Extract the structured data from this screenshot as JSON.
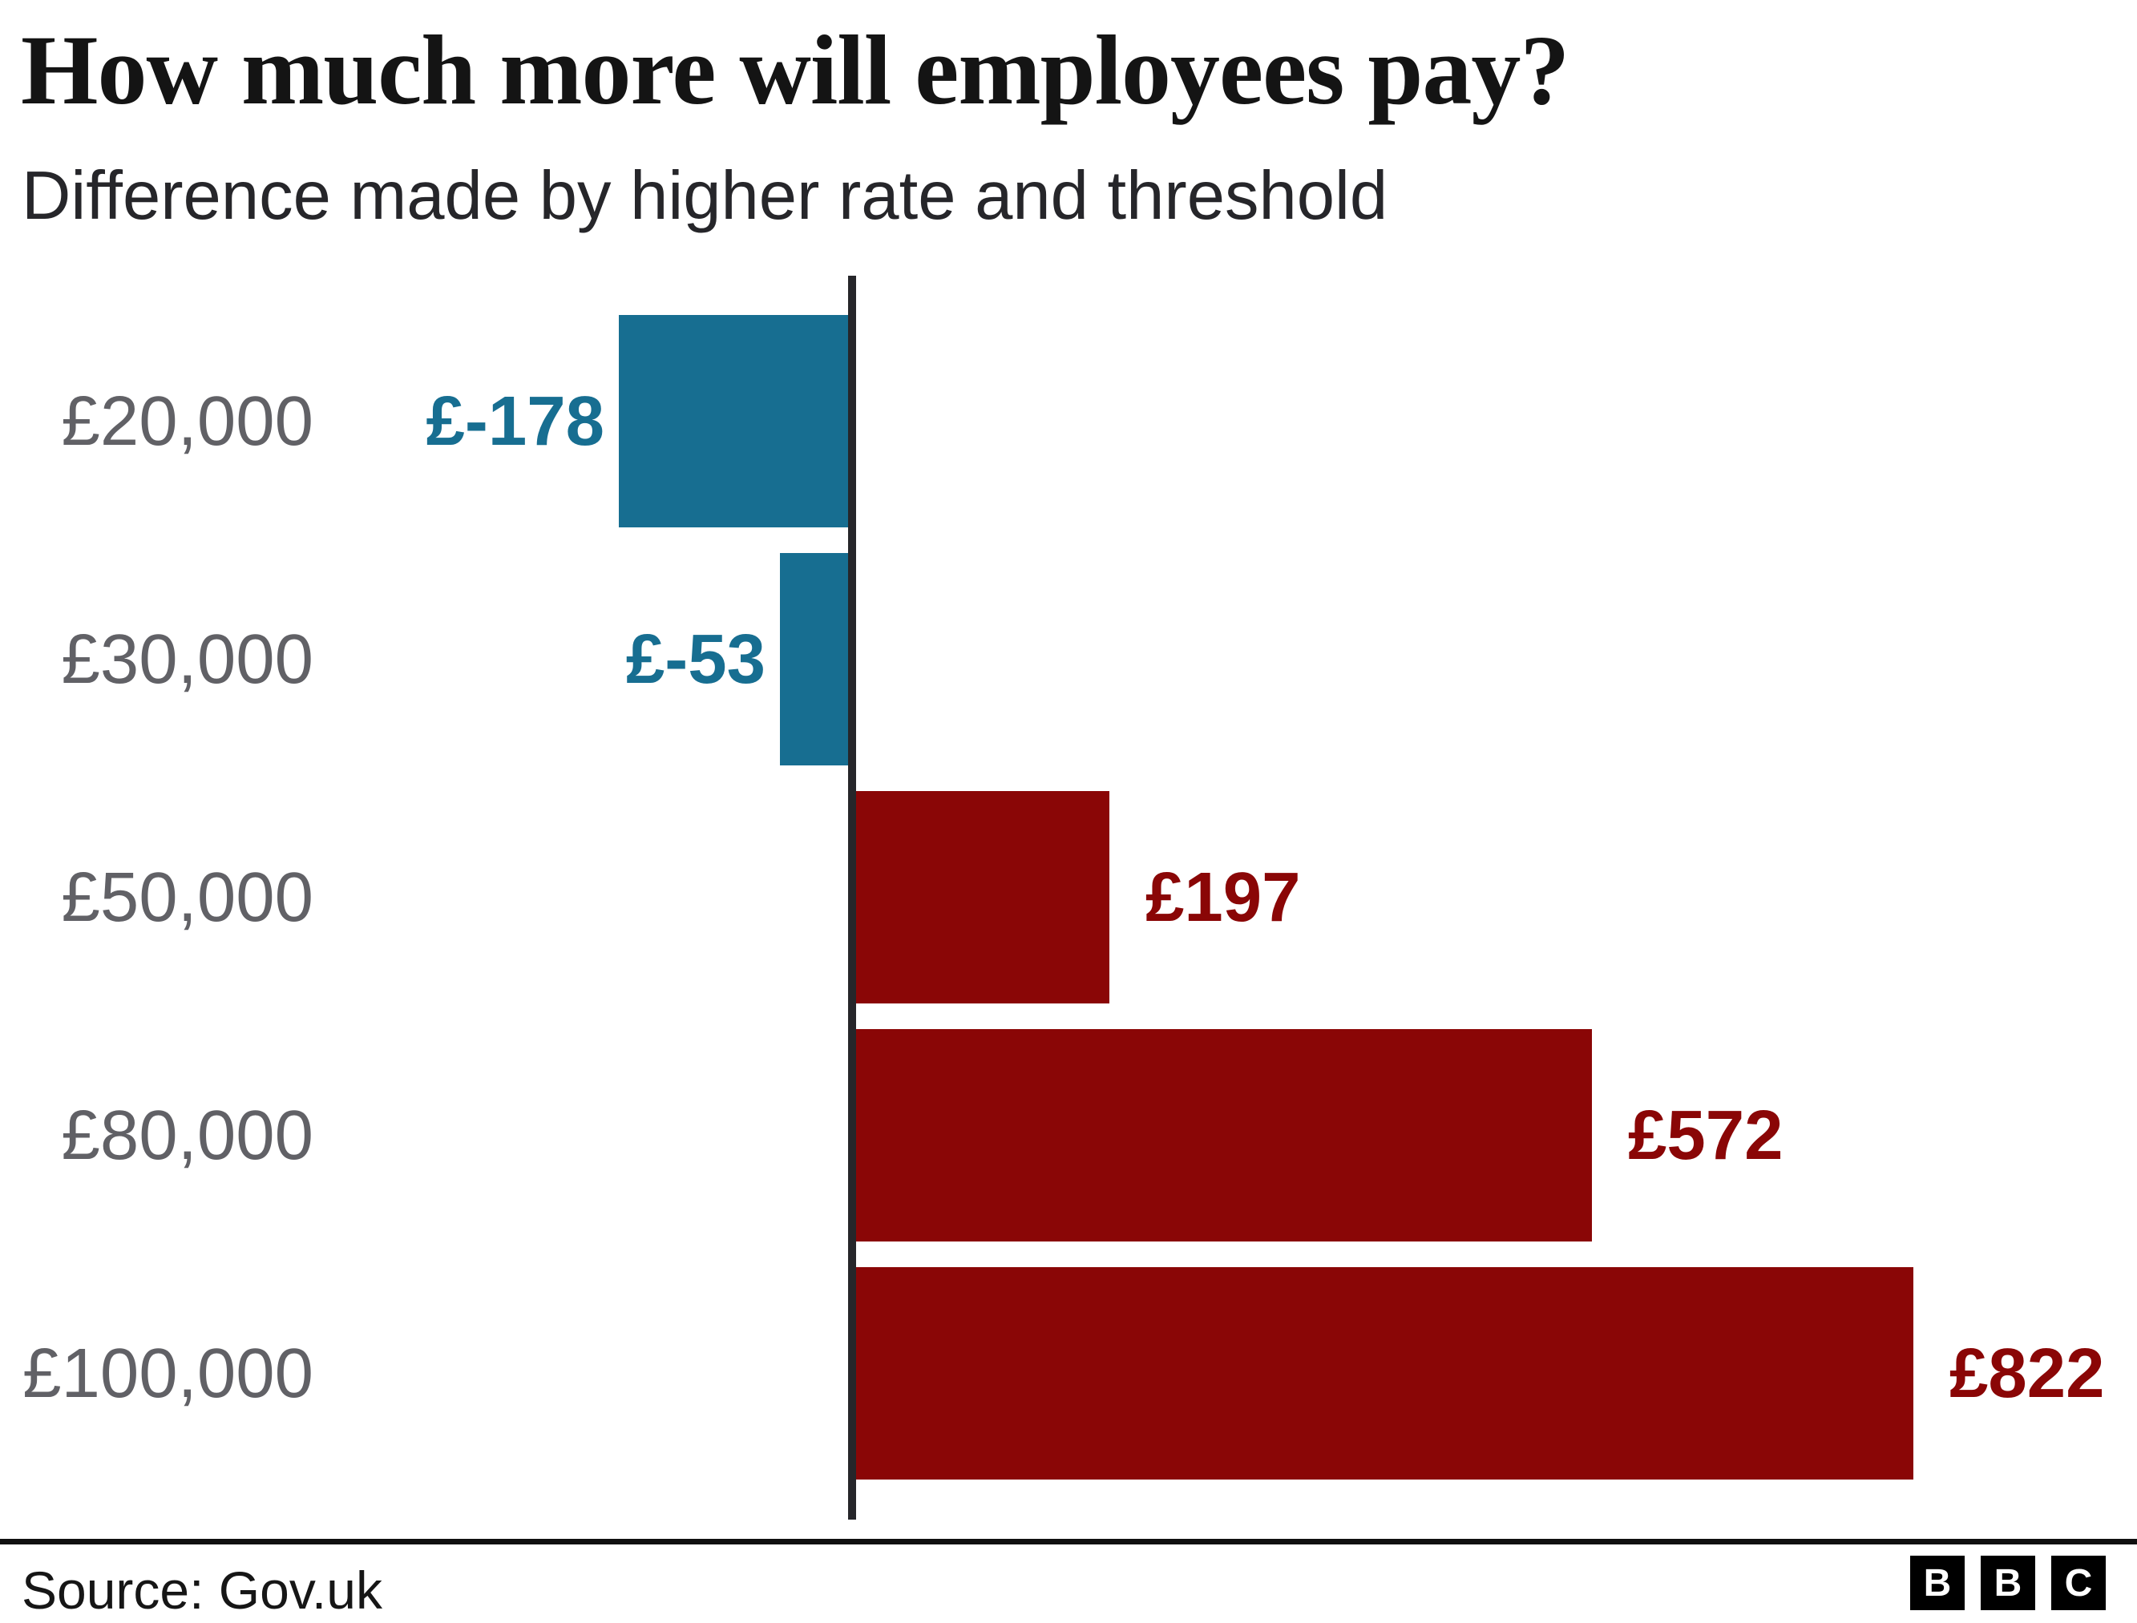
{
  "header": {
    "title": "How much more will employees pay?",
    "subtitle": "Difference made by higher rate and threshold"
  },
  "chart_data": {
    "type": "bar",
    "orientation": "horizontal",
    "title": "How much more will employees pay?",
    "subtitle": "Difference made by higher rate and threshold",
    "categories": [
      "£20,000",
      "£30,000",
      "£50,000",
      "£80,000",
      "£100,000"
    ],
    "values": [
      -178,
      -53,
      197,
      572,
      822
    ],
    "value_labels": [
      "£-178",
      "£-53",
      "£197",
      "£572",
      "£822"
    ],
    "xlabel": "",
    "ylabel": "",
    "xlim": [
      -200,
      1000
    ],
    "baseline": 0,
    "grid": false,
    "legend": "none",
    "colors": {
      "negative": "#176E91",
      "positive": "#8A0606",
      "category_label": "#616166",
      "axis": "#26262a"
    }
  },
  "footer": {
    "source": "Source: Gov.uk",
    "logo_letters": [
      "B",
      "B",
      "C"
    ]
  }
}
